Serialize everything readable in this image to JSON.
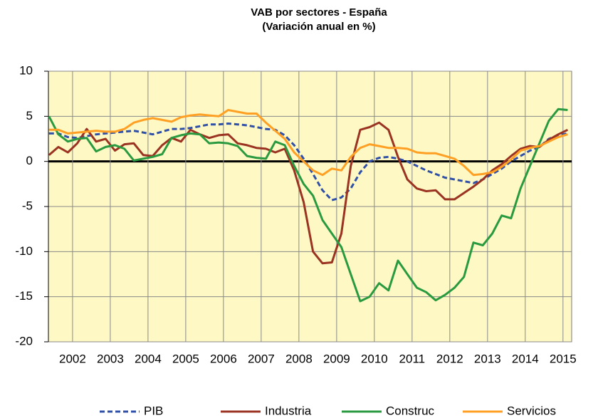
{
  "chart_data": {
    "type": "line",
    "title": "VAB por sectores - España",
    "subtitle": "(Variación anual en %)",
    "x": [
      2001.875,
      2002.125,
      2002.375,
      2002.625,
      2002.875,
      2003.125,
      2003.375,
      2003.625,
      2003.875,
      2004.125,
      2004.375,
      2004.625,
      2004.875,
      2005.125,
      2005.375,
      2005.625,
      2005.875,
      2006.125,
      2006.375,
      2006.625,
      2006.875,
      2007.125,
      2007.375,
      2007.625,
      2007.875,
      2008.125,
      2008.375,
      2008.625,
      2008.875,
      2009.125,
      2009.375,
      2009.625,
      2009.875,
      2010.125,
      2010.375,
      2010.625,
      2010.875,
      2011.125,
      2011.375,
      2011.625,
      2011.875,
      2012.125,
      2012.375,
      2012.625,
      2012.875,
      2013.125,
      2013.375,
      2013.625,
      2013.875,
      2014.125,
      2014.375,
      2014.625,
      2014.875,
      2015.125,
      2015.375,
      2015.625
    ],
    "xlim": [
      2001.86,
      2015.73
    ],
    "xticks": [
      {
        "value": 2002.5,
        "label": "2002"
      },
      {
        "value": 2003.5,
        "label": "2003"
      },
      {
        "value": 2004.5,
        "label": "2004"
      },
      {
        "value": 2005.5,
        "label": "2005"
      },
      {
        "value": 2006.5,
        "label": "2006"
      },
      {
        "value": 2007.5,
        "label": "2007"
      },
      {
        "value": 2008.5,
        "label": "2008"
      },
      {
        "value": 2009.5,
        "label": "2009"
      },
      {
        "value": 2010.5,
        "label": "2010"
      },
      {
        "value": 2011.5,
        "label": "2011"
      },
      {
        "value": 2012.5,
        "label": "2012"
      },
      {
        "value": 2013.5,
        "label": "2013"
      },
      {
        "value": 2014.5,
        "label": "2014"
      },
      {
        "value": 2015.5,
        "label": "2015"
      }
    ],
    "ylim": [
      -20,
      10
    ],
    "yticks": [
      -20,
      -15,
      -10,
      -5,
      0,
      5,
      10
    ],
    "grid": true,
    "legend": "bottom",
    "series": [
      {
        "name": "PIB",
        "color": "#3050a8",
        "style": "dashed",
        "values": [
          3.1,
          3.1,
          2.7,
          2.6,
          2.8,
          3.0,
          3.1,
          3.2,
          3.3,
          3.4,
          3.2,
          3.0,
          3.3,
          3.6,
          3.6,
          3.7,
          3.9,
          4.1,
          4.1,
          4.2,
          4.1,
          4.0,
          3.8,
          3.6,
          3.5,
          2.9,
          1.8,
          0.3,
          -1.4,
          -3.2,
          -4.3,
          -4.0,
          -3.0,
          -1.2,
          0.0,
          0.4,
          0.5,
          0.3,
          0.0,
          -0.5,
          -1.0,
          -1.4,
          -1.8,
          -2.0,
          -2.2,
          -2.4,
          -2.0,
          -1.4,
          -0.8,
          0.0,
          0.6,
          1.2,
          1.6,
          2.5,
          2.9,
          3.1
        ]
      },
      {
        "name": "Industria",
        "color": "#9b3322",
        "style": "solid",
        "values": [
          0.7,
          1.6,
          1.0,
          2.0,
          3.6,
          2.2,
          2.5,
          1.2,
          1.9,
          2.0,
          0.7,
          0.6,
          1.8,
          2.6,
          2.2,
          3.5,
          3.0,
          2.6,
          2.9,
          3.0,
          2.0,
          1.8,
          1.5,
          1.4,
          1.0,
          1.4,
          -1.0,
          -4.5,
          -10.0,
          -11.3,
          -11.2,
          -8.0,
          -0.5,
          3.5,
          3.8,
          4.3,
          3.5,
          0.5,
          -2.0,
          -3.0,
          -3.3,
          -3.2,
          -4.2,
          -4.2,
          -3.5,
          -2.8,
          -2.0,
          -1.0,
          -0.3,
          0.6,
          1.4,
          1.7,
          1.6,
          2.4,
          3.0,
          3.5
        ]
      },
      {
        "name": "Construc",
        "color": "#2a9a40",
        "style": "solid",
        "values": [
          5.0,
          3.0,
          2.2,
          2.5,
          2.6,
          1.1,
          1.6,
          1.8,
          1.4,
          0.1,
          0.3,
          0.5,
          0.8,
          2.6,
          2.9,
          3.1,
          3.0,
          2.0,
          2.1,
          2.0,
          1.7,
          0.6,
          0.4,
          0.3,
          2.2,
          1.8,
          -0.5,
          -2.5,
          -3.8,
          -6.5,
          -8.0,
          -9.5,
          -12.5,
          -15.5,
          -15.0,
          -13.5,
          -14.3,
          -11.0,
          -12.5,
          -14.0,
          -14.5,
          -15.4,
          -14.8,
          -14.0,
          -12.8,
          -9.0,
          -9.3,
          -8.0,
          -6.0,
          -6.3,
          -3.0,
          -0.5,
          2.0,
          4.5,
          5.8,
          5.7
        ]
      },
      {
        "name": "Servicios",
        "color": "#ffa024",
        "style": "solid",
        "values": [
          3.5,
          3.5,
          3.1,
          3.2,
          3.3,
          3.4,
          3.3,
          3.3,
          3.6,
          4.3,
          4.6,
          4.8,
          4.6,
          4.4,
          4.9,
          5.1,
          5.2,
          5.1,
          5.0,
          5.7,
          5.5,
          5.3,
          5.3,
          4.3,
          3.4,
          2.5,
          1.0,
          0.0,
          -1.0,
          -1.5,
          -0.8,
          -1.0,
          0.5,
          1.5,
          1.9,
          1.7,
          1.5,
          1.5,
          1.4,
          1.0,
          0.9,
          0.9,
          0.6,
          0.3,
          -0.5,
          -1.5,
          -1.4,
          -1.2,
          -0.6,
          0.2,
          1.2,
          1.5,
          1.7,
          2.2,
          2.7,
          3.0
        ]
      }
    ]
  }
}
